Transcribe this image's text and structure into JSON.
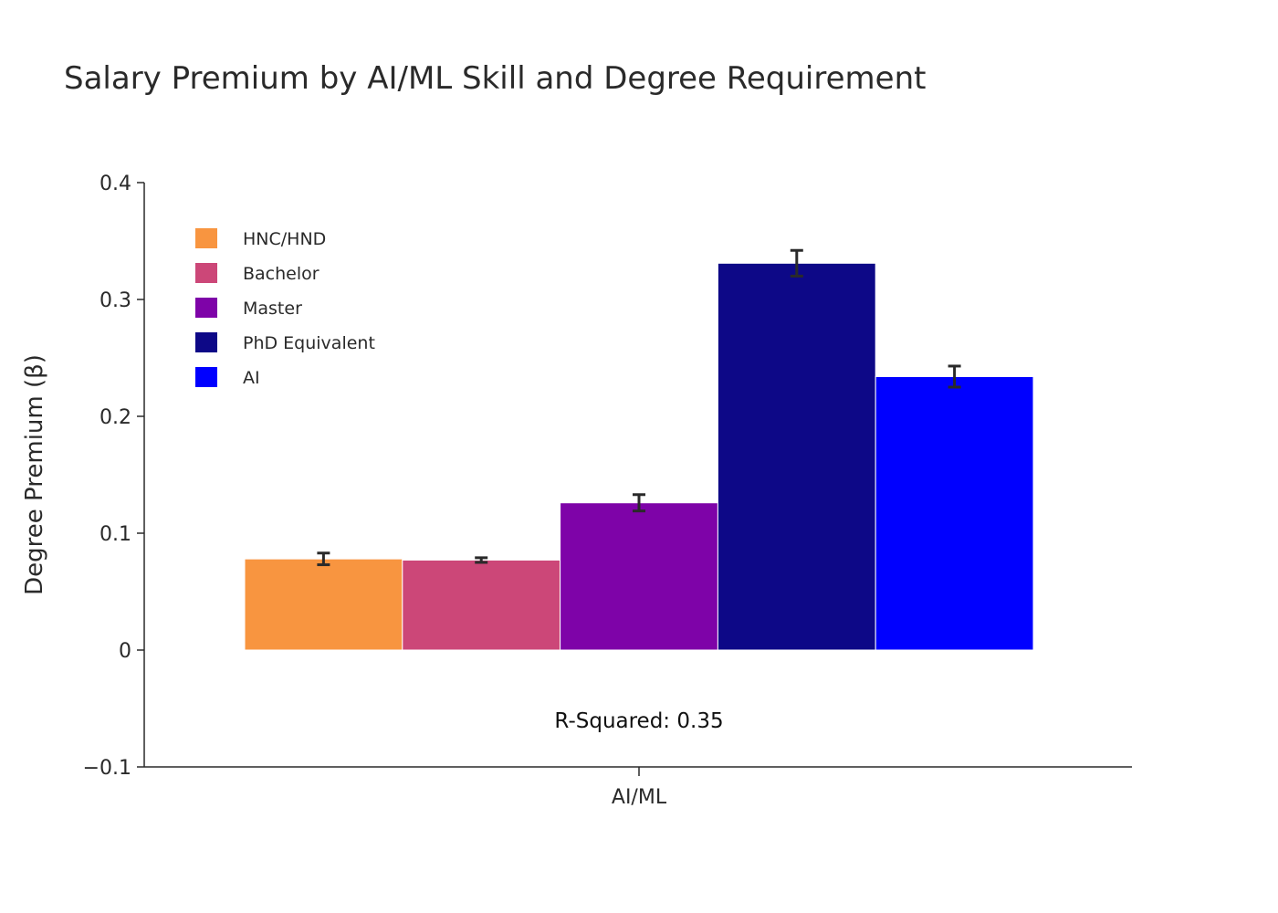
{
  "chart_data": {
    "type": "bar",
    "title": "Salary Premium by AI/ML Skill and Degree Requirement",
    "xlabel": "",
    "ylabel": "Degree Premium (β)",
    "categories": [
      "AI/ML"
    ],
    "series": [
      {
        "name": "HNC/HND",
        "values": [
          0.078
        ],
        "error": [
          0.005
        ],
        "color": "#f89540"
      },
      {
        "name": "Bachelor",
        "values": [
          0.077
        ],
        "error": [
          0.002
        ],
        "color": "#cc4778"
      },
      {
        "name": "Master",
        "values": [
          0.126
        ],
        "error": [
          0.007
        ],
        "color": "#7e03a8"
      },
      {
        "name": "PhD Equivalent",
        "values": [
          0.331
        ],
        "error": [
          0.011
        ],
        "color": "#0d0887"
      },
      {
        "name": "AI",
        "values": [
          0.234
        ],
        "error": [
          0.009
        ],
        "color": "#0000ff"
      }
    ],
    "ylim": [
      -0.1,
      0.4
    ],
    "yticks": [
      -0.1,
      0,
      0.1,
      0.2,
      0.3,
      0.4
    ],
    "ytick_labels": [
      "−0.1",
      "0",
      "0.1",
      "0.2",
      "0.3",
      "0.4"
    ],
    "annotation": "R-Squared: 0.35",
    "legend_position": "top-left",
    "grid": false
  }
}
